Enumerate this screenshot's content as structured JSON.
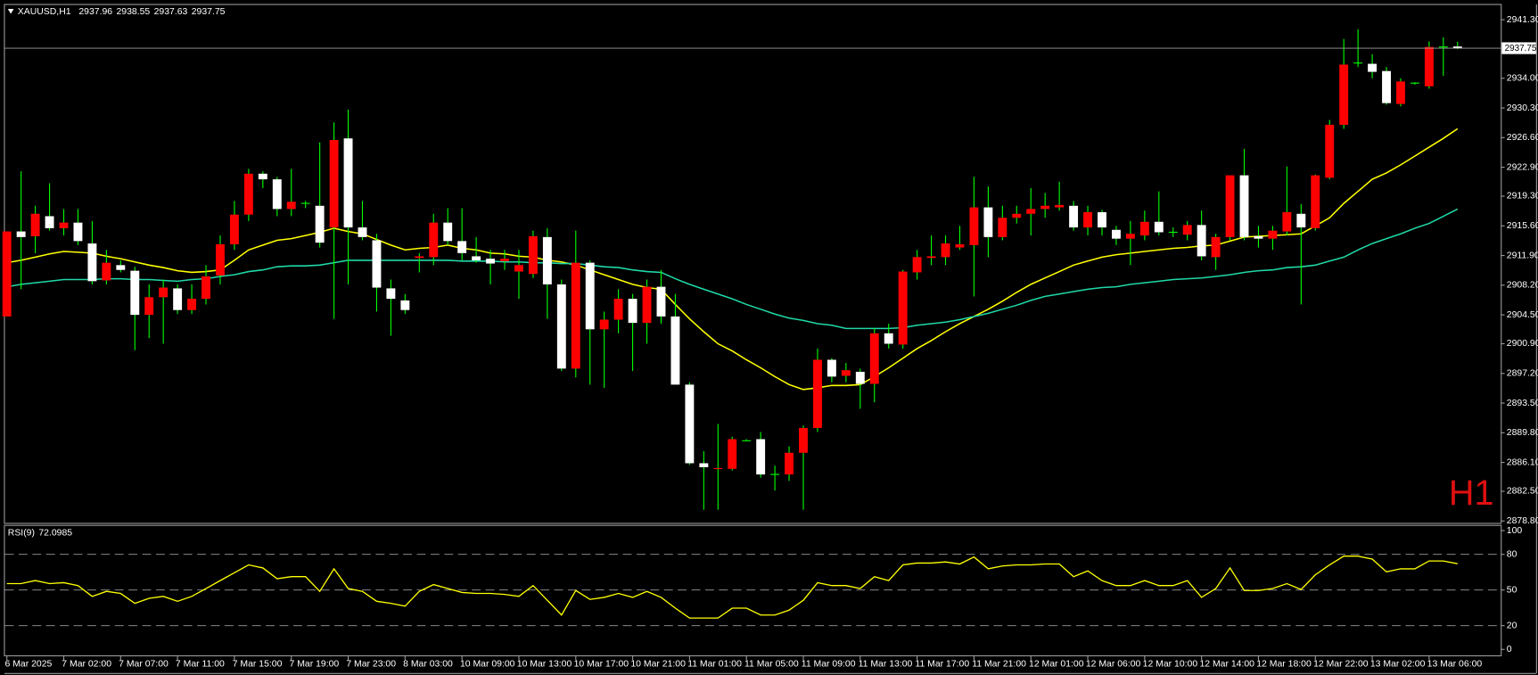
{
  "chart_data": [
    {
      "type": "candlestick",
      "title": "XAUUSD,H1",
      "watermark": "H1",
      "categories": [
        "6 Mar 2025",
        null,
        null,
        null,
        "7 Mar 02:00",
        null,
        null,
        null,
        "7 Mar 07:00",
        null,
        null,
        null,
        "7 Mar 11:00",
        null,
        null,
        null,
        "7 Mar 15:00",
        null,
        null,
        null,
        "7 Mar 19:00",
        null,
        null,
        null,
        "7 Mar 23:00",
        null,
        null,
        null,
        "8 Mar 03:00",
        null,
        null,
        null,
        "10 Mar 09:00",
        null,
        null,
        null,
        "10 Mar 13:00",
        null,
        null,
        null,
        "10 Mar 17:00",
        null,
        null,
        null,
        "10 Mar 21:00",
        null,
        null,
        null,
        "11 Mar 01:00",
        null,
        null,
        null,
        "11 Mar 05:00",
        null,
        null,
        null,
        "11 Mar 09:00",
        null,
        null,
        null,
        "11 Mar 13:00",
        null,
        null,
        null,
        "11 Mar 17:00",
        null,
        null,
        null,
        "11 Mar 21:00",
        null,
        null,
        null,
        "12 Mar 01:00",
        null,
        null,
        null,
        "12 Mar 06:00",
        null,
        null,
        null,
        "12 Mar 10:00",
        null,
        null,
        null,
        "12 Mar 14:00",
        null,
        null,
        null,
        "12 Mar 18:00",
        null,
        null,
        null,
        "12 Mar 22:00",
        null,
        null,
        null,
        "13 Mar 02:00",
        null,
        null,
        null,
        "13 Mar 06:00",
        null,
        null
      ],
      "open": [
        2904.3,
        2914.9,
        2914.3,
        2916.8,
        2915.3,
        2916.0,
        2913.4,
        2908.8,
        2910.7,
        2910.0,
        2904.5,
        2906.7,
        2907.8,
        2905.1,
        2906.5,
        2909.4,
        2913.3,
        2917.0,
        2922.1,
        2921.4,
        2917.7,
        2918.4,
        2918.1,
        2915.4,
        2926.5,
        2915.4,
        2913.8,
        2907.8,
        2906.3,
        2911.6,
        2911.7,
        2916.0,
        2913.7,
        2911.8,
        2911.5,
        2911.2,
        2909.9,
        2909.6,
        2914.2,
        2908.3,
        2897.8,
        2911.0,
        2902.7,
        2903.9,
        2906.5,
        2903.5,
        2908.0,
        2904.3,
        2895.8,
        2886.0,
        2885.3,
        2885.3,
        2888.8,
        2889.0,
        2884.6,
        2884.6,
        2887.3,
        2890.4,
        2898.9,
        2896.9,
        2897.4,
        2895.9,
        2902.2,
        2900.8,
        2909.8,
        2911.6,
        2911.7,
        2912.9,
        2913.2,
        2917.9,
        2914.2,
        2916.6,
        2917.1,
        2917.7,
        2917.9,
        2918.1,
        2915.4,
        2917.3,
        2915.1,
        2914.0,
        2914.4,
        2916.1,
        2914.8,
        2914.5,
        2915.7,
        2911.7,
        2914.2,
        2921.9,
        2914.3,
        2914.0,
        2914.9,
        2917.1,
        2915.3,
        2921.6,
        2928.2,
        2935.9,
        2935.8,
        2934.9,
        2930.8,
        2933.4,
        2933.0,
        2937.9,
        2937.96
      ],
      "high": [
        2914.9,
        2922.4,
        2918.1,
        2920.9,
        2917.7,
        2917.7,
        2916.2,
        2912.6,
        2911.3,
        2910.5,
        2908.3,
        2908.9,
        2908.3,
        2908.3,
        2910.7,
        2914.4,
        2918.7,
        2922.7,
        2922.4,
        2921.7,
        2922.7,
        2918.7,
        2926.0,
        2928.5,
        2930.1,
        2918.7,
        2914.6,
        2908.9,
        2907.1,
        2912.2,
        2917.1,
        2917.8,
        2917.8,
        2914.2,
        2912.6,
        2912.6,
        2912.6,
        2915.0,
        2915.3,
        2908.9,
        2915.0,
        2911.3,
        2904.9,
        2907.7,
        2907.1,
        2908.9,
        2910.1,
        2907.1,
        2896.1,
        2887.5,
        2890.9,
        2889.3,
        2889.0,
        2889.9,
        2885.7,
        2888.1,
        2890.7,
        2900.3,
        2899.1,
        2898.5,
        2897.8,
        2902.8,
        2903.4,
        2910.1,
        2912.6,
        2914.4,
        2914.4,
        2915.6,
        2921.7,
        2920.5,
        2918.1,
        2918.1,
        2920.3,
        2919.7,
        2921.1,
        2918.7,
        2918.1,
        2917.6,
        2915.6,
        2916.2,
        2917.5,
        2919.9,
        2915.4,
        2916.2,
        2917.5,
        2914.6,
        2921.9,
        2925.2,
        2915.6,
        2915.6,
        2923.0,
        2918.3,
        2922.0,
        2928.8,
        2938.9,
        2940.1,
        2937.0,
        2935.4,
        2934.0,
        2933.5,
        2938.6,
        2939.1,
        2938.55
      ],
      "low": [
        2904.3,
        2907.7,
        2912.2,
        2915.0,
        2914.4,
        2913.2,
        2908.3,
        2908.3,
        2909.8,
        2900.1,
        2901.6,
        2900.9,
        2904.6,
        2904.6,
        2905.8,
        2908.3,
        2912.6,
        2916.2,
        2920.3,
        2916.8,
        2916.8,
        2917.8,
        2912.9,
        2904.0,
        2908.3,
        2913.8,
        2904.9,
        2901.9,
        2904.6,
        2909.8,
        2910.7,
        2913.2,
        2911.3,
        2911.0,
        2908.3,
        2910.1,
        2906.5,
        2909.1,
        2904.0,
        2897.5,
        2896.7,
        2895.8,
        2895.4,
        2902.2,
        2897.5,
        2900.9,
        2903.4,
        2895.8,
        2885.8,
        2880.2,
        2880.2,
        2885.1,
        2888.8,
        2884.2,
        2882.6,
        2883.8,
        2880.2,
        2889.9,
        2896.1,
        2896.1,
        2892.8,
        2893.6,
        2900.3,
        2900.3,
        2908.9,
        2910.7,
        2910.7,
        2912.6,
        2906.8,
        2911.7,
        2913.8,
        2915.9,
        2914.4,
        2916.6,
        2917.5,
        2915.0,
        2914.4,
        2914.4,
        2913.2,
        2910.7,
        2913.8,
        2914.4,
        2914.2,
        2913.8,
        2911.3,
        2910.1,
        2913.8,
        2913.8,
        2912.9,
        2912.6,
        2914.4,
        2905.8,
        2915.0,
        2921.4,
        2927.7,
        2935.4,
        2934.0,
        2930.7,
        2930.5,
        2933.2,
        2932.7,
        2934.3,
        2937.63
      ],
      "close": [
        2914.9,
        2914.2,
        2917.1,
        2915.3,
        2916.0,
        2913.7,
        2908.7,
        2911.0,
        2910.1,
        2904.5,
        2906.7,
        2907.9,
        2905.1,
        2906.5,
        2909.3,
        2913.3,
        2917.0,
        2922.1,
        2921.4,
        2917.7,
        2918.6,
        2918.4,
        2913.5,
        2926.3,
        2915.4,
        2914.2,
        2907.9,
        2906.5,
        2905.1,
        2911.8,
        2916.0,
        2913.7,
        2912.2,
        2911.3,
        2910.9,
        2911.5,
        2910.7,
        2914.3,
        2908.3,
        2897.8,
        2911.0,
        2902.7,
        2903.9,
        2906.5,
        2903.5,
        2908.0,
        2904.3,
        2895.8,
        2886.0,
        2885.5,
        2885.4,
        2889.0,
        2888.8,
        2884.6,
        2884.6,
        2887.3,
        2890.4,
        2898.9,
        2896.8,
        2897.6,
        2895.9,
        2902.2,
        2900.9,
        2909.9,
        2911.7,
        2911.8,
        2913.4,
        2913.3,
        2917.9,
        2914.2,
        2916.6,
        2917.1,
        2917.7,
        2918.1,
        2918.2,
        2915.4,
        2917.3,
        2915.4,
        2914.0,
        2914.6,
        2916.1,
        2914.8,
        2914.8,
        2915.7,
        2911.8,
        2914.2,
        2921.9,
        2914.2,
        2914.0,
        2915.0,
        2917.3,
        2915.4,
        2921.9,
        2928.2,
        2935.7,
        2935.9,
        2934.8,
        2930.9,
        2933.6,
        2933.4,
        2937.9,
        2937.9,
        2937.75
      ],
      "up_color": "#ff0000",
      "down_color": "#ffffff",
      "wick_color": "#00ff00",
      "price_line_color": "#a0a0a0",
      "series": [
        {
          "color": "#ffff00",
          "values": [
            2911.0,
            2911.3,
            2911.7,
            2912.1,
            2912.4,
            2912.3,
            2912.2,
            2911.8,
            2911.5,
            2911.1,
            2910.7,
            2910.4,
            2910.0,
            2909.8,
            2909.9,
            2910.1,
            2911.3,
            2912.6,
            2913.2,
            2913.8,
            2914.0,
            2914.4,
            2914.8,
            2915.3,
            2914.9,
            2914.6,
            2913.9,
            2913.2,
            2912.6,
            2912.8,
            2912.9,
            2913.2,
            2912.8,
            2912.6,
            2912.2,
            2912.1,
            2911.8,
            2911.7,
            2911.3,
            2911.1,
            2910.7,
            2910.1,
            2909.5,
            2908.9,
            2908.3,
            2907.9,
            2907.7,
            2905.8,
            2904.0,
            2902.4,
            2900.9,
            2900.0,
            2898.9,
            2897.9,
            2896.8,
            2895.8,
            2895.2,
            2895.4,
            2895.7,
            2895.7,
            2895.8,
            2896.8,
            2897.9,
            2899.1,
            2900.3,
            2901.3,
            2902.4,
            2903.4,
            2904.3,
            2905.2,
            2906.2,
            2907.3,
            2908.3,
            2909.1,
            2909.9,
            2910.7,
            2911.2,
            2911.7,
            2912.0,
            2912.2,
            2912.4,
            2912.6,
            2912.8,
            2912.9,
            2913.1,
            2913.2,
            2913.7,
            2914.2,
            2914.3,
            2914.4,
            2914.5,
            2914.6,
            2915.6,
            2916.6,
            2918.4,
            2919.9,
            2921.4,
            2922.2,
            2923.2,
            2924.3,
            2925.4,
            2926.5,
            2927.7
          ]
        },
        {
          "color": "#20d8a8",
          "values": [
            2908.0,
            2908.3,
            2908.5,
            2908.7,
            2908.9,
            2908.9,
            2908.9,
            2909.0,
            2909.0,
            2908.9,
            2908.9,
            2908.8,
            2908.7,
            2908.9,
            2909.0,
            2909.3,
            2909.5,
            2909.9,
            2910.1,
            2910.5,
            2910.6,
            2910.6,
            2910.7,
            2911.0,
            2911.3,
            2911.3,
            2911.3,
            2911.3,
            2911.3,
            2911.3,
            2911.3,
            2911.3,
            2911.2,
            2911.2,
            2911.2,
            2911.1,
            2911.1,
            2911.0,
            2911.0,
            2910.9,
            2910.9,
            2910.7,
            2910.5,
            2910.4,
            2910.1,
            2909.9,
            2909.8,
            2909.0,
            2908.3,
            2907.7,
            2907.1,
            2906.5,
            2905.8,
            2905.2,
            2904.6,
            2904.1,
            2903.8,
            2903.4,
            2903.2,
            2902.8,
            2902.8,
            2902.8,
            2902.8,
            2902.9,
            2903.2,
            2903.4,
            2903.6,
            2903.9,
            2904.3,
            2904.7,
            2905.2,
            2905.7,
            2906.3,
            2906.8,
            2907.1,
            2907.4,
            2907.7,
            2907.9,
            2908.0,
            2908.3,
            2908.5,
            2908.7,
            2908.9,
            2909.0,
            2909.1,
            2909.3,
            2909.5,
            2909.8,
            2910.0,
            2910.1,
            2910.4,
            2910.5,
            2910.7,
            2911.2,
            2911.7,
            2912.6,
            2913.4,
            2914.0,
            2914.6,
            2915.3,
            2915.9,
            2916.8,
            2917.7
          ]
        }
      ],
      "ylim": [
        2878.56,
        2943.14
      ],
      "yticks": [
        {
          "value": 2941.3,
          "label": "2941.30"
        },
        {
          "value": 2934,
          "label": "2934.00"
        },
        {
          "value": 2930.3,
          "label": "2930.30"
        },
        {
          "value": 2926.6,
          "label": "2926.60"
        },
        {
          "value": 2922.9,
          "label": "2922.90"
        },
        {
          "value": 2919.3,
          "label": "2919.30"
        },
        {
          "value": 2915.6,
          "label": "2915.60"
        },
        {
          "value": 2911.9,
          "label": "2911.90"
        },
        {
          "value": 2908.2,
          "label": "2908.20"
        },
        {
          "value": 2904.5,
          "label": "2904.50"
        },
        {
          "value": 2900.9,
          "label": "2900.90"
        },
        {
          "value": 2897.2,
          "label": "2897.20"
        },
        {
          "value": 2893.5,
          "label": "2893.50"
        },
        {
          "value": 2889.8,
          "label": "2889.80"
        },
        {
          "value": 2886.1,
          "label": "2886.10"
        },
        {
          "value": 2882.5,
          "label": "2882.50"
        },
        {
          "value": 2878.8,
          "label": "2878.80"
        }
      ]
    },
    {
      "type": "line",
      "title": "RSI(9)",
      "series": [
        {
          "color": "#ffff00",
          "values": [
            55.4,
            55.4,
            57.9,
            55.4,
            56.2,
            53.7,
            44.6,
            48.8,
            47.1,
            38.8,
            43.0,
            44.6,
            40.5,
            44.6,
            51.2,
            57.9,
            64.5,
            71.1,
            68.6,
            59.5,
            61.2,
            61.2,
            48.8,
            67.8,
            51.2,
            48.8,
            40.5,
            38.8,
            36.4,
            48.8,
            54.5,
            51.2,
            47.9,
            47.1,
            47.1,
            46.3,
            44.6,
            53.7,
            41.3,
            28.9,
            49.6,
            42.1,
            43.8,
            47.1,
            43.8,
            48.8,
            43.8,
            34.7,
            26.4,
            26.4,
            26.4,
            34.7,
            34.7,
            28.9,
            28.9,
            33.1,
            41.3,
            56.2,
            53.7,
            53.7,
            51.2,
            61.2,
            57.9,
            71.1,
            72.7,
            72.7,
            73.6,
            71.9,
            77.7,
            67.8,
            70.2,
            71.1,
            71.1,
            71.9,
            71.9,
            61.2,
            66.1,
            57.9,
            53.7,
            53.7,
            57.9,
            53.7,
            53.7,
            57.9,
            43.8,
            51.2,
            68.6,
            49.6,
            49.6,
            51.2,
            55.4,
            50.4,
            62.8,
            71.1,
            78.5,
            78.5,
            76.0,
            65.3,
            67.8,
            67.8,
            74.4,
            74.4,
            72.0985
          ]
        }
      ],
      "ylim": [
        -5,
        104
      ],
      "yticks": [
        100,
        80,
        50,
        20,
        0
      ],
      "levels": [
        80,
        50,
        20
      ],
      "level_color": "#9a9a9a"
    }
  ]
}
